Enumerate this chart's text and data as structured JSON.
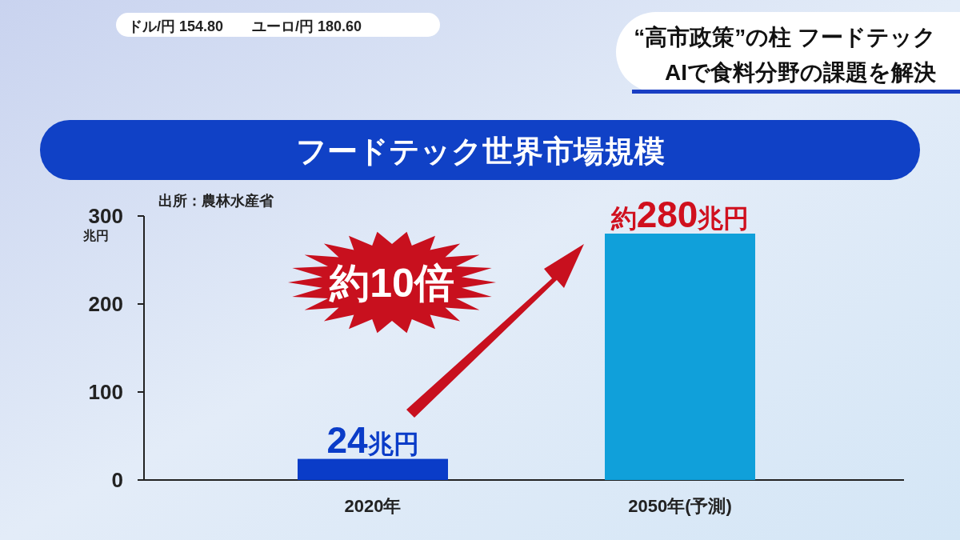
{
  "chart_data": {
    "type": "bar",
    "title": "フードテック世界市場規模",
    "categories": [
      "2020年",
      "2050年(予測)"
    ],
    "values": [
      24,
      280
    ],
    "colors": [
      "#0a3cc8",
      "#10a0da"
    ],
    "value_labels": [
      "24兆円",
      "約280兆円"
    ],
    "ylabel": "兆円",
    "ylim": [
      0,
      300
    ],
    "yticks": [
      0,
      100,
      200,
      300
    ],
    "grid": false,
    "annotations": [
      "出所：農林水産省",
      "約10倍",
      "“高市政策”の柱 フードテック",
      "AIで食料分野の課題を解決",
      "ドル/円 154.80",
      "ユーロ/円 180.60"
    ]
  }
}
